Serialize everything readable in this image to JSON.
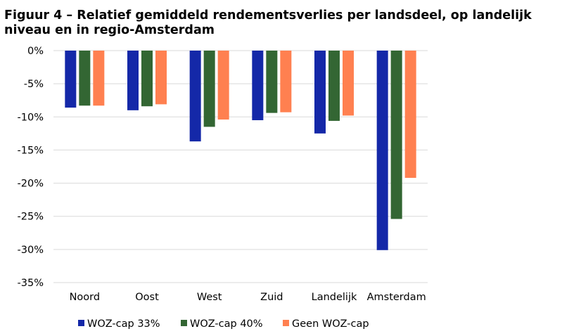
{
  "chart_data": {
    "type": "bar",
    "title": "Figuur 4 – Relatief gemiddeld rendementsverlies per landsdeel, op landelijk niveau en in regio-Amsterdam",
    "categories": [
      "Noord",
      "Oost",
      "West",
      "Zuid",
      "Landelijk",
      "Amsterdam"
    ],
    "series": [
      {
        "name": "WOZ-cap 33%",
        "color": "#1428A8",
        "values": [
          -8.6,
          -9.0,
          -13.7,
          -10.5,
          -12.5,
          -30.1
        ]
      },
      {
        "name": "WOZ-cap 40%",
        "color": "#336633",
        "values": [
          -8.3,
          -8.4,
          -11.5,
          -9.4,
          -10.6,
          -25.4
        ]
      },
      {
        "name": "Geen WOZ-cap",
        "color": "#FF8050",
        "values": [
          -8.3,
          -8.1,
          -10.4,
          -9.3,
          -9.8,
          -19.2
        ]
      }
    ],
    "ylim": [
      -35,
      0
    ],
    "yticks": [
      "0%",
      "-5%",
      "-10%",
      "-15%",
      "-20%",
      "-25%",
      "-30%",
      "-35%"
    ],
    "grid": true,
    "legend": "bottom"
  }
}
